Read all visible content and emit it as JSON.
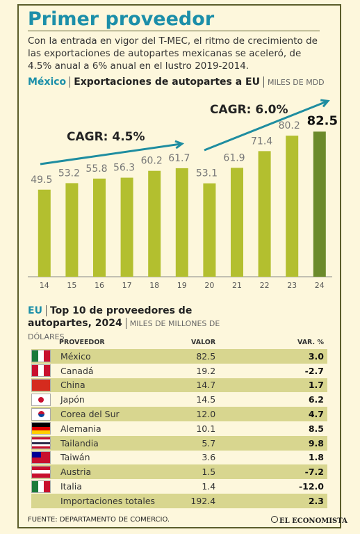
{
  "header": {
    "title": "Primer proveedor",
    "intro": "Con la entrada en vigor del T-MEC, el ritmo de crecimiento de las exportaciones de autopartes mexicanas se aceleró, de 4.5% anual a 6% anual en el lustro 2019-2014."
  },
  "chart_data": {
    "type": "bar",
    "region": "México",
    "title": "Exportaciones de autopartes a EU",
    "unit": "MILES DE MDD",
    "categories": [
      "14",
      "15",
      "16",
      "17",
      "18",
      "19",
      "20",
      "21",
      "22",
      "23",
      "24"
    ],
    "values": [
      49.5,
      53.2,
      55.8,
      56.3,
      60.2,
      61.7,
      53.1,
      61.9,
      71.4,
      80.2,
      82.5
    ],
    "colors": [
      "#b3bf2f",
      "#b3bf2f",
      "#b3bf2f",
      "#b3bf2f",
      "#b3bf2f",
      "#b3bf2f",
      "#b3bf2f",
      "#b3bf2f",
      "#b3bf2f",
      "#b3bf2f",
      "#6b8a2b"
    ],
    "annotations": [
      "CAGR: 4.5%",
      "CAGR: 6.0%"
    ]
  },
  "table": {
    "region": "EU",
    "title": "Top 10 de proveedores de autopartes, 2024",
    "unit": "MILES DE MILLONES DE DÓLARES",
    "columns": [
      "PROVEEDOR",
      "VALOR",
      "VAR. %"
    ],
    "rows": [
      [
        "México",
        "82.5",
        "3.0"
      ],
      [
        "Canadá",
        "19.2",
        "-2.7"
      ],
      [
        "China",
        "14.7",
        "1.7"
      ],
      [
        "Japón",
        "14.5",
        "6.2"
      ],
      [
        "Corea del Sur",
        "12.0",
        "4.7"
      ],
      [
        "Alemania",
        "10.1",
        "8.5"
      ],
      [
        "Tailandia",
        "5.7",
        "9.8"
      ],
      [
        "Taiwán",
        "3.6",
        "1.8"
      ],
      [
        "Austria",
        "1.5",
        "-7.2"
      ],
      [
        "Italia",
        "1.4",
        "-12.0"
      ],
      [
        "Importaciones totales",
        "192.4",
        "2.3"
      ]
    ]
  },
  "footer": {
    "source": "FUENTE: DEPARTAMENTO DE COMERCIO.",
    "brand": "EL ECONOMISTA"
  }
}
